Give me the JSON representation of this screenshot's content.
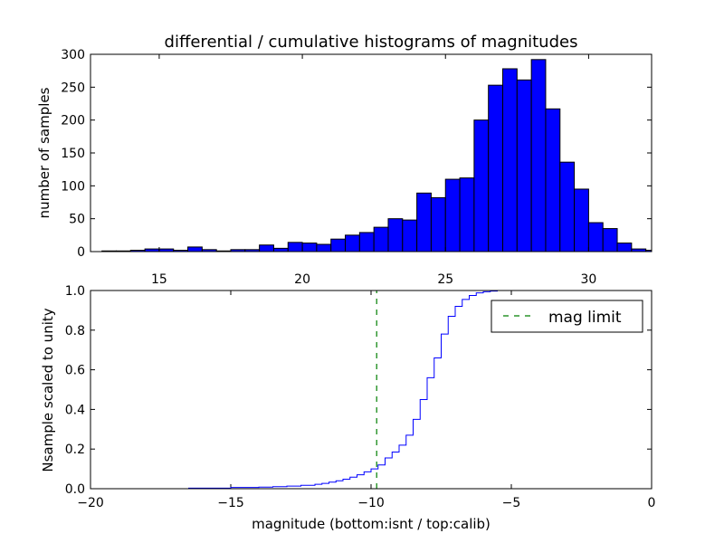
{
  "chart_data": [
    {
      "type": "bar",
      "title": "differential / cumulative histograms of magnitudes",
      "xlabel": "",
      "ylabel": "number of samples",
      "xlim": [
        12.6,
        32.2
      ],
      "ylim": [
        0,
        300
      ],
      "x_ticks": [
        15,
        20,
        25,
        30
      ],
      "y_ticks": [
        0,
        50,
        100,
        150,
        200,
        250,
        300
      ],
      "x_tick_position": "bottom",
      "bin_width": 0.5,
      "bar_color": "#0000ff",
      "edge_color": "#000000",
      "bins": [
        {
          "x": 13.5,
          "value": 1
        },
        {
          "x": 14.0,
          "value": 1
        },
        {
          "x": 14.5,
          "value": 2
        },
        {
          "x": 15.0,
          "value": 4
        },
        {
          "x": 15.5,
          "value": 4
        },
        {
          "x": 16.0,
          "value": 2
        },
        {
          "x": 16.5,
          "value": 7
        },
        {
          "x": 17.0,
          "value": 3
        },
        {
          "x": 17.5,
          "value": 1
        },
        {
          "x": 18.0,
          "value": 3
        },
        {
          "x": 18.5,
          "value": 3
        },
        {
          "x": 19.0,
          "value": 10
        },
        {
          "x": 19.5,
          "value": 5
        },
        {
          "x": 20.0,
          "value": 14
        },
        {
          "x": 20.5,
          "value": 13
        },
        {
          "x": 21.0,
          "value": 11
        },
        {
          "x": 21.5,
          "value": 19
        },
        {
          "x": 22.0,
          "value": 25
        },
        {
          "x": 22.5,
          "value": 29
        },
        {
          "x": 23.0,
          "value": 37
        },
        {
          "x": 23.5,
          "value": 50
        },
        {
          "x": 24.0,
          "value": 48
        },
        {
          "x": 24.5,
          "value": 89
        },
        {
          "x": 25.0,
          "value": 82
        },
        {
          "x": 25.5,
          "value": 110
        },
        {
          "x": 26.0,
          "value": 112
        },
        {
          "x": 26.5,
          "value": 200
        },
        {
          "x": 27.0,
          "value": 253
        },
        {
          "x": 27.5,
          "value": 278
        },
        {
          "x": 28.0,
          "value": 261
        },
        {
          "x": 28.5,
          "value": 292
        },
        {
          "x": 29.0,
          "value": 217
        },
        {
          "x": 29.5,
          "value": 136
        },
        {
          "x": 30.0,
          "value": 95
        },
        {
          "x": 30.5,
          "value": 44
        },
        {
          "x": 31.0,
          "value": 35
        },
        {
          "x": 31.5,
          "value": 13
        },
        {
          "x": 32.0,
          "value": 4
        },
        {
          "x": 32.5,
          "value": 2
        },
        {
          "x": 33.0,
          "value": 1
        },
        {
          "x": 33.5,
          "value": 1
        }
      ]
    },
    {
      "type": "line",
      "title": "",
      "xlabel": "magnitude (bottom:isnt / top:calib)",
      "ylabel": "Nsample scaled to unity",
      "xlim": [
        -20,
        0
      ],
      "ylim": [
        0,
        1.0
      ],
      "x_ticks": [
        "−20",
        "−15",
        "−10",
        "−5",
        "0"
      ],
      "x_tick_values": [
        -20,
        -15,
        -10,
        -5,
        0
      ],
      "y_ticks": [
        "0.0",
        "0.2",
        "0.4",
        "0.6",
        "0.8",
        "1.0"
      ],
      "y_tick_values": [
        0,
        0.2,
        0.4,
        0.6,
        0.8,
        1.0
      ],
      "legend": "top-right",
      "series": [
        {
          "style": "step",
          "color": "#0000ff",
          "x": [
            -20,
            -16.5,
            -15,
            -14,
            -13.5,
            -13,
            -12.5,
            -12,
            -11.75,
            -11.5,
            -11.25,
            -11,
            -10.75,
            -10.5,
            -10.25,
            -10,
            -9.75,
            -9.5,
            -9.25,
            -9,
            -8.75,
            -8.5,
            -8.25,
            -8,
            -7.75,
            -7.5,
            -7.25,
            -7,
            -6.75,
            -6.5,
            -6.25,
            -6,
            -5.75,
            -5.5,
            -5,
            -4,
            -0.05
          ],
          "values": [
            0.0,
            0.003,
            0.006,
            0.008,
            0.01,
            0.013,
            0.017,
            0.022,
            0.027,
            0.033,
            0.04,
            0.048,
            0.058,
            0.07,
            0.085,
            0.1,
            0.12,
            0.155,
            0.185,
            0.22,
            0.27,
            0.35,
            0.45,
            0.56,
            0.66,
            0.78,
            0.87,
            0.92,
            0.955,
            0.975,
            0.988,
            0.994,
            0.997,
            1.0,
            1.0,
            1.0,
            1.0
          ]
        },
        {
          "name": "mag limit",
          "style": "dashed-vertical",
          "color": "#007f00",
          "x": [
            -9.8,
            -9.8
          ],
          "values": [
            0,
            1.0
          ]
        }
      ]
    }
  ]
}
